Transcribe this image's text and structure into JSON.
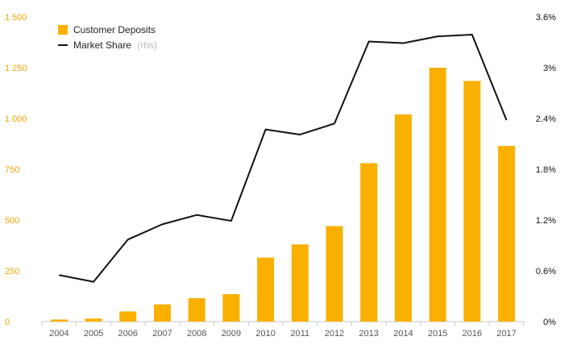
{
  "chart_data": {
    "type": "bar",
    "categories": [
      "2004",
      "2005",
      "2006",
      "2007",
      "2008",
      "2009",
      "2010",
      "2011",
      "2012",
      "2013",
      "2014",
      "2015",
      "2016",
      "2017"
    ],
    "series": [
      {
        "name": "Customer Deposits",
        "type": "bar",
        "axis": "left",
        "color": "#f9b000",
        "values": [
          10,
          15,
          50,
          85,
          115,
          135,
          315,
          380,
          470,
          780,
          1020,
          1250,
          1185,
          865
        ]
      },
      {
        "name": "Market Share",
        "type": "line",
        "axis": "right",
        "color": "#111111",
        "values": [
          0.55,
          0.47,
          0.97,
          1.15,
          1.26,
          1.19,
          2.27,
          2.21,
          2.34,
          3.31,
          3.29,
          3.37,
          3.39,
          2.38
        ]
      }
    ],
    "legend": {
      "deposits_label": "Customer Deposits",
      "share_label": "Market Share",
      "share_suffix": "(rhs)",
      "position": "top-left"
    },
    "y_left": {
      "ylim": [
        0,
        1500
      ],
      "ticks": [
        0,
        250,
        500,
        750,
        1000,
        1250,
        1500
      ],
      "tick_labels": [
        "0",
        "250",
        "500",
        "750",
        "1 000",
        "1 250",
        "1 500"
      ],
      "color": "#f0a500"
    },
    "y_right": {
      "ylim": [
        0,
        3.6
      ],
      "ticks": [
        0,
        0.6,
        1.2,
        1.8,
        2.4,
        3.0,
        3.6
      ],
      "tick_labels": [
        "0%",
        "0.6%",
        "1.2%",
        "1.8%",
        "2.4%",
        "3%",
        "3.6%"
      ]
    },
    "grid": false,
    "title": "",
    "xlabel": "",
    "ylabel": ""
  }
}
